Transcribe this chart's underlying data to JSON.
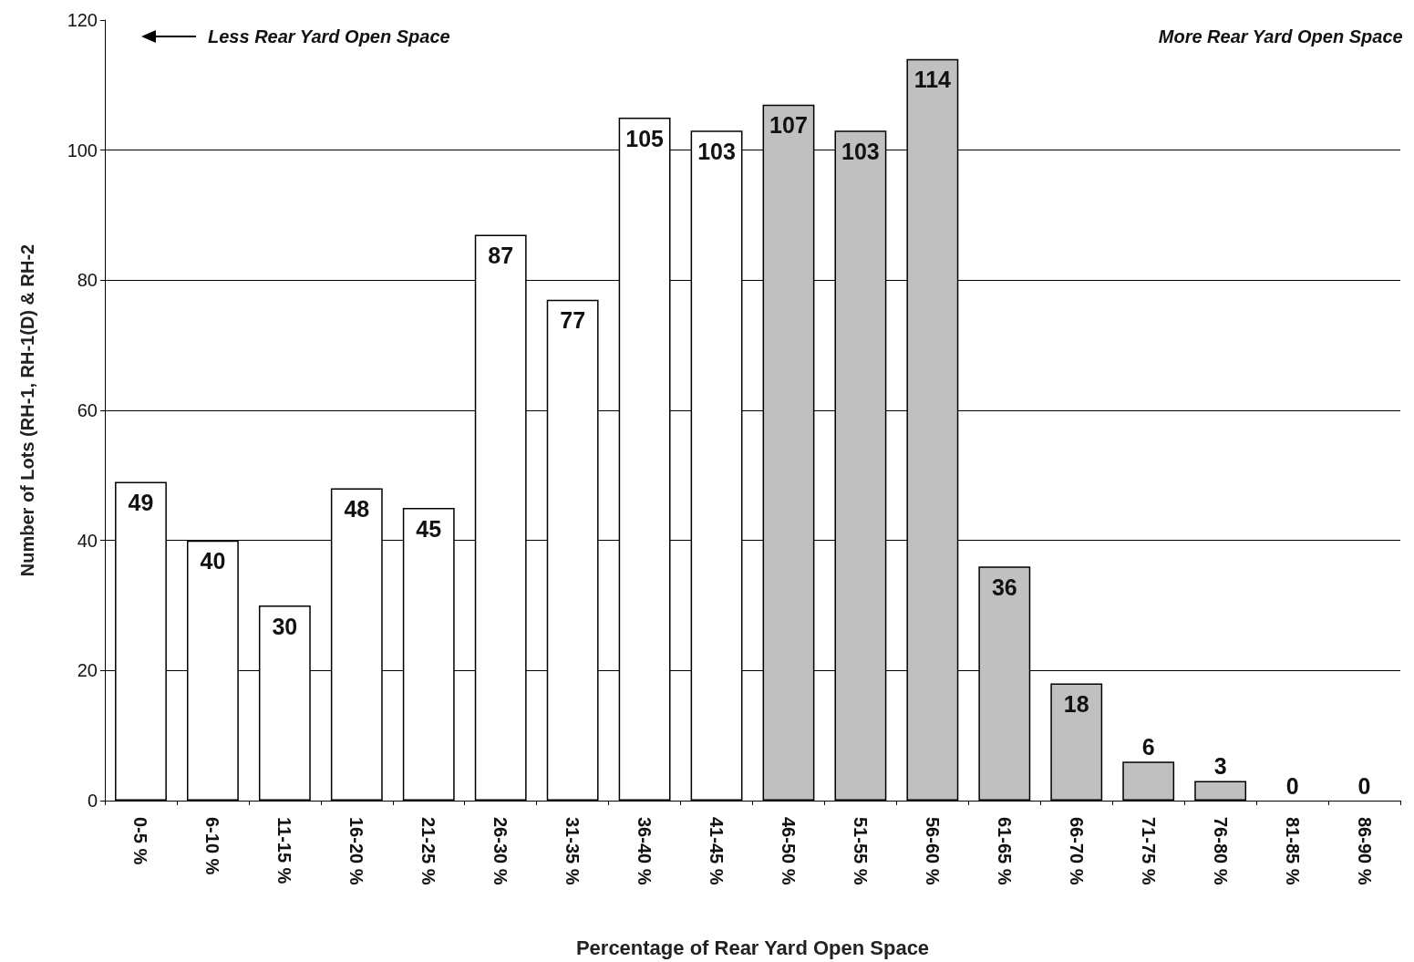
{
  "chart_data": {
    "type": "bar",
    "xlabel": "Percentage of Rear Yard Open Space",
    "ylabel": "Number of Lots (RH-1, RH-1(D) & RH-2",
    "annotations": [
      "Less Rear Yard Open Space",
      "More Rear Yard Open Space"
    ],
    "categories": [
      "0-5 %",
      "6-10 %",
      "11-15 %",
      "16-20 %",
      "21-25 %",
      "26-30 %",
      "31-35 %",
      "36-40 %",
      "41-45 %",
      "46-50 %",
      "51-55 %",
      "56-60 %",
      "61-65 %",
      "66-70 %",
      "71-75 %",
      "76-80 %",
      "81-85 %",
      "86-90 %"
    ],
    "values": [
      49,
      40,
      30,
      48,
      45,
      87,
      77,
      105,
      103,
      107,
      103,
      114,
      36,
      18,
      6,
      3,
      0,
      0
    ],
    "colors": [
      "#ffffff",
      "#ffffff",
      "#ffffff",
      "#ffffff",
      "#ffffff",
      "#ffffff",
      "#ffffff",
      "#ffffff",
      "#ffffff",
      "#c0c0c0",
      "#c0c0c0",
      "#c0c0c0",
      "#c0c0c0",
      "#c0c0c0",
      "#c0c0c0",
      "#c0c0c0",
      "#c0c0c0",
      "#c0c0c0"
    ],
    "ylim": [
      0,
      120
    ],
    "yticks": [
      0,
      20,
      40,
      60,
      80,
      100,
      120
    ],
    "grid": "y",
    "data_labels": true
  }
}
